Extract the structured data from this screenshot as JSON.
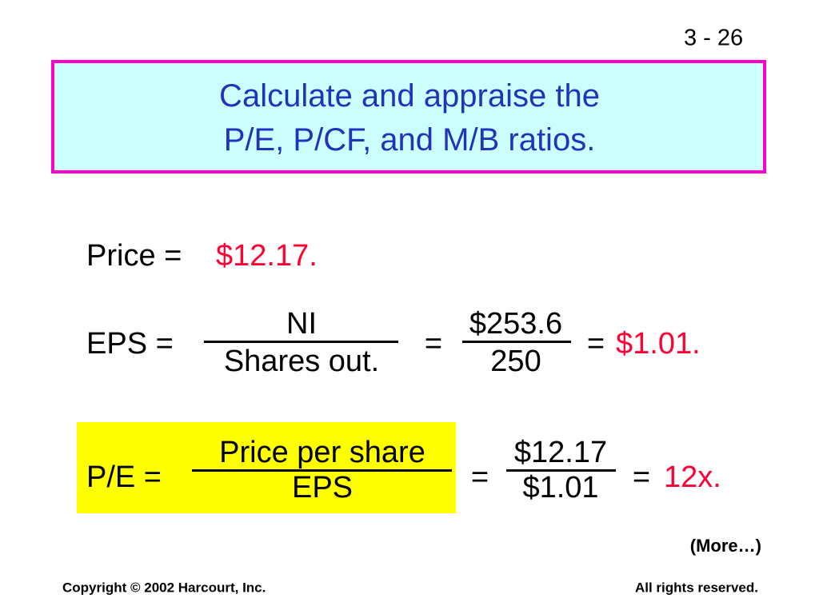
{
  "slide_number": "3 - 26",
  "title": {
    "lines": [
      "Calculate and appraise the",
      "P/E, P/CF, and M/B ratios."
    ]
  },
  "price": {
    "label": "Price =",
    "value": "$12.17."
  },
  "eps": {
    "label": "EPS =",
    "numerator": "NI",
    "denominator": "Shares out.",
    "equals_1": "=",
    "value_numerator": "$253.6",
    "value_denominator": "250",
    "equals_2": "=",
    "result": "$1.01."
  },
  "pe": {
    "label": "P/E =",
    "numerator": "Price per share",
    "denominator": "EPS",
    "equals_1": "=",
    "value_numerator": "$12.17",
    "value_denominator": "$1.01",
    "equals_2": "=",
    "result": "12x."
  },
  "more": "(More…)",
  "footer": {
    "left": "Copyright © 2002 Harcourt, Inc.",
    "right": "All rights reserved."
  }
}
